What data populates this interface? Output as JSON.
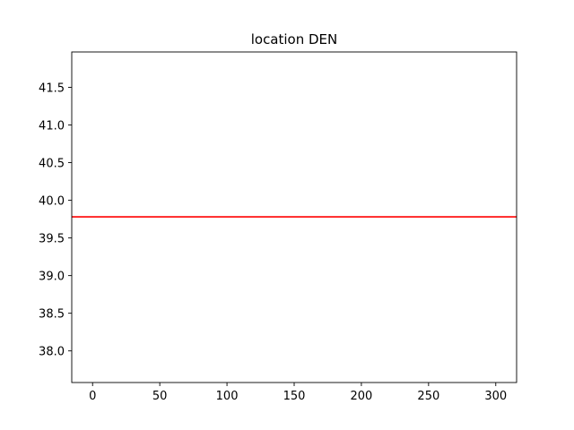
{
  "chart_data": {
    "type": "line",
    "title": "location DEN",
    "xlabel": "",
    "ylabel": "",
    "xlim": [
      -15.5,
      315.5
    ],
    "ylim": [
      37.58,
      41.97
    ],
    "xticks": [
      0,
      50,
      100,
      150,
      200,
      250,
      300
    ],
    "xtick_labels": [
      "0",
      "50",
      "100",
      "150",
      "200",
      "250",
      "300"
    ],
    "yticks": [
      38.0,
      38.5,
      39.0,
      39.5,
      40.0,
      40.5,
      41.0,
      41.5
    ],
    "ytick_labels": [
      "38.0",
      "38.5",
      "39.0",
      "39.5",
      "40.0",
      "40.5",
      "41.0",
      "41.5"
    ],
    "grid": false,
    "legend": "none",
    "series": [
      {
        "color": "#ff0000",
        "x": [
          -15.5,
          315.5
        ],
        "y": [
          39.78,
          39.78
        ]
      }
    ]
  }
}
